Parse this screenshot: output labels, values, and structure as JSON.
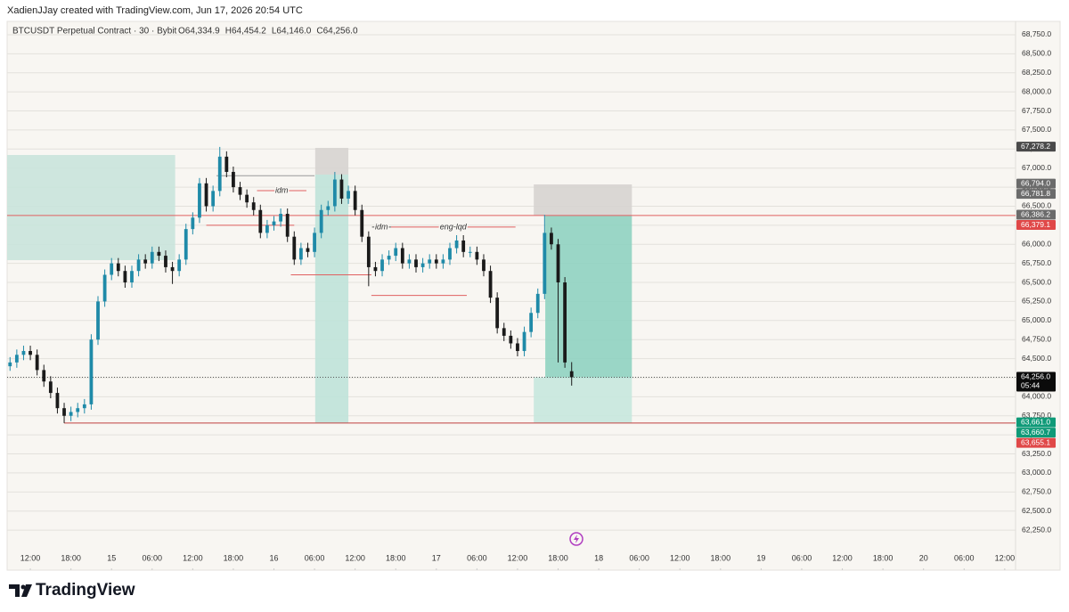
{
  "header": {
    "credit": "XadienJJay created with TradingView.com, Jun 17, 2026 20:54 UTC",
    "logo": "TradingView"
  },
  "chart_data": {
    "type": "candlestick",
    "symbol": "BTCUSDT Perpetual Contract · 30 · Bybit",
    "ohlc_labels": [
      "O64,334.9",
      "H64,454.2",
      "L64,146.0",
      "C64,256.0"
    ],
    "up_color": "#1f8aa8",
    "down_color": "#1a1a1a",
    "grid": true,
    "xlim": [
      -3.43,
      145.6
    ],
    "ylim": [
      61725,
      68925
    ],
    "xticks": [
      {
        "value": 0,
        "label": "12:00"
      },
      {
        "value": 6,
        "label": "18:00"
      },
      {
        "value": 12,
        "label": "15"
      },
      {
        "value": 18,
        "label": "06:00"
      },
      {
        "value": 24,
        "label": "12:00"
      },
      {
        "value": 30,
        "label": "18:00"
      },
      {
        "value": 36,
        "label": "16"
      },
      {
        "value": 42,
        "label": "06:00"
      },
      {
        "value": 48,
        "label": "12:00"
      },
      {
        "value": 54,
        "label": "18:00"
      },
      {
        "value": 60,
        "label": "17"
      },
      {
        "value": 66,
        "label": "06:00"
      },
      {
        "value": 72,
        "label": "12:00"
      },
      {
        "value": 78,
        "label": "18:00"
      },
      {
        "value": 84,
        "label": "18"
      },
      {
        "value": 90,
        "label": "06:00"
      },
      {
        "value": 96,
        "label": "12:00"
      },
      {
        "value": 102,
        "label": "18:00"
      },
      {
        "value": 108,
        "label": "19"
      },
      {
        "value": 114,
        "label": "06:00"
      },
      {
        "value": 120,
        "label": "12:00"
      },
      {
        "value": 126,
        "label": "18:00"
      },
      {
        "value": 132,
        "label": "20"
      },
      {
        "value": 138,
        "label": "06:00"
      },
      {
        "value": 144,
        "label": "12:00"
      }
    ],
    "yticks": [
      {
        "value": 62250,
        "label": "62,250.0"
      },
      {
        "value": 62500,
        "label": "62,500.0"
      },
      {
        "value": 62750,
        "label": "62,750.0"
      },
      {
        "value": 63000,
        "label": "63,000.0"
      },
      {
        "value": 63250,
        "label": "63,250.0"
      },
      {
        "value": 63500,
        "label": "63,500.0"
      },
      {
        "value": 63750,
        "label": "63,750.0"
      },
      {
        "value": 64000,
        "label": "64,000.0"
      },
      {
        "value": 64250,
        "label": "64,250.0"
      },
      {
        "value": 64500,
        "label": "64,500.0"
      },
      {
        "value": 64750,
        "label": "64,750.0"
      },
      {
        "value": 65000,
        "label": "65,000.0"
      },
      {
        "value": 65250,
        "label": "65,250.0"
      },
      {
        "value": 65500,
        "label": "65,500.0"
      },
      {
        "value": 65750,
        "label": "65,750.0"
      },
      {
        "value": 66000,
        "label": "66,000.0"
      },
      {
        "value": 66250,
        "label": "66,250.0"
      },
      {
        "value": 66500,
        "label": "66,500.0"
      },
      {
        "value": 66750,
        "label": "66,750.0"
      },
      {
        "value": 67000,
        "label": "67,000.0"
      },
      {
        "value": 67250,
        "label": "67,250.0"
      },
      {
        "value": 67500,
        "label": "67,500.0"
      },
      {
        "value": 67750,
        "label": "67,750.0"
      },
      {
        "value": 68000,
        "label": "68,000.0"
      },
      {
        "value": 68250,
        "label": "68,250.0"
      },
      {
        "value": 68500,
        "label": "68,500.0"
      },
      {
        "value": 68750,
        "label": "68,750.0"
      }
    ],
    "x": [
      -3,
      -2,
      -1,
      0,
      1,
      2,
      3,
      4,
      5,
      6,
      7,
      8,
      9,
      10,
      11,
      12,
      13,
      14,
      15,
      16,
      17,
      18,
      19,
      20,
      21,
      22,
      23,
      24,
      25,
      26,
      27,
      28,
      29,
      30,
      31,
      32,
      33,
      34,
      35,
      36,
      37,
      38,
      39,
      40,
      41,
      42,
      43,
      44,
      45,
      46,
      47,
      48,
      49,
      50,
      51,
      52,
      53,
      54,
      55,
      56,
      57,
      58,
      59,
      60,
      61,
      62,
      63,
      64,
      65,
      66,
      67,
      68,
      69,
      70,
      71,
      72,
      73,
      74,
      75,
      76,
      77,
      78,
      79,
      80
    ],
    "candles": [
      [
        64400,
        64520,
        64340,
        64450
      ],
      [
        64450,
        64620,
        64380,
        64550
      ],
      [
        64550,
        64670,
        64480,
        64600
      ],
      [
        64600,
        64670,
        64480,
        64550
      ],
      [
        64550,
        64620,
        64280,
        64350
      ],
      [
        64350,
        64420,
        64130,
        64200
      ],
      [
        64200,
        64270,
        63980,
        64050
      ],
      [
        64050,
        64120,
        63780,
        63850
      ],
      [
        63850,
        63920,
        63655,
        63750
      ],
      [
        63750,
        63870,
        63680,
        63800
      ],
      [
        63800,
        63920,
        63730,
        63850
      ],
      [
        63850,
        63970,
        63780,
        63900
      ],
      [
        63900,
        64820,
        63830,
        64750
      ],
      [
        64750,
        65320,
        64680,
        65250
      ],
      [
        65250,
        65670,
        65180,
        65600
      ],
      [
        65600,
        65820,
        65530,
        65750
      ],
      [
        65750,
        65820,
        65580,
        65650
      ],
      [
        65650,
        65720,
        65430,
        65500
      ],
      [
        65500,
        65720,
        65430,
        65650
      ],
      [
        65650,
        65870,
        65580,
        65800
      ],
      [
        65800,
        65870,
        65680,
        65750
      ],
      [
        65750,
        65970,
        65680,
        65900
      ],
      [
        65900,
        65970,
        65780,
        65850
      ],
      [
        65850,
        65920,
        65630,
        65700
      ],
      [
        65700,
        65770,
        65480,
        65650
      ],
      [
        65650,
        65870,
        65580,
        65800
      ],
      [
        65800,
        66270,
        65730,
        66200
      ],
      [
        66200,
        66420,
        66130,
        66350
      ],
      [
        66350,
        66870,
        66280,
        66800
      ],
      [
        66800,
        66870,
        66430,
        66500
      ],
      [
        66500,
        66770,
        66430,
        66700
      ],
      [
        66700,
        67278,
        66630,
        67150
      ],
      [
        67150,
        67220,
        66880,
        66950
      ],
      [
        66950,
        67020,
        66680,
        66750
      ],
      [
        66750,
        66820,
        66580,
        66650
      ],
      [
        66650,
        66720,
        66480,
        66550
      ],
      [
        66550,
        66620,
        66380,
        66450
      ],
      [
        66450,
        66520,
        66080,
        66150
      ],
      [
        66150,
        66320,
        66080,
        66250
      ],
      [
        66250,
        66370,
        66180,
        66300
      ],
      [
        66300,
        66470,
        66230,
        66400
      ],
      [
        66400,
        66470,
        66030,
        66100
      ],
      [
        66100,
        66170,
        65730,
        65800
      ],
      [
        65800,
        66020,
        65730,
        65950
      ],
      [
        65950,
        66020,
        65830,
        65900
      ],
      [
        65900,
        66220,
        65830,
        66150
      ],
      [
        66150,
        66520,
        66080,
        66450
      ],
      [
        66450,
        66570,
        66380,
        66500
      ],
      [
        66500,
        66950,
        66430,
        66850
      ],
      [
        66850,
        66920,
        66530,
        66600
      ],
      [
        66600,
        66770,
        66530,
        66700
      ],
      [
        66700,
        66770,
        66380,
        66450
      ],
      [
        66450,
        66520,
        66030,
        66100
      ],
      [
        66100,
        66170,
        65450,
        65700
      ],
      [
        65700,
        65770,
        65580,
        65650
      ],
      [
        65650,
        65870,
        65580,
        65800
      ],
      [
        65800,
        65920,
        65730,
        65850
      ],
      [
        65850,
        66020,
        65780,
        65950
      ],
      [
        65950,
        66020,
        65680,
        65750
      ],
      [
        65750,
        65870,
        65680,
        65800
      ],
      [
        65800,
        65870,
        65630,
        65700
      ],
      [
        65700,
        65820,
        65630,
        65750
      ],
      [
        65750,
        65870,
        65680,
        65800
      ],
      [
        65800,
        65870,
        65680,
        65750
      ],
      [
        65750,
        65870,
        65680,
        65800
      ],
      [
        65800,
        66020,
        65730,
        65950
      ],
      [
        65950,
        66120,
        65880,
        66050
      ],
      [
        66050,
        66120,
        65830,
        65900
      ],
      [
        65900,
        65970,
        65830,
        65900
      ],
      [
        65900,
        65970,
        65730,
        65800
      ],
      [
        65800,
        65870,
        65580,
        65650
      ],
      [
        65650,
        65720,
        65230,
        65300
      ],
      [
        65300,
        65370,
        64830,
        64900
      ],
      [
        64900,
        64970,
        64730,
        64800
      ],
      [
        64800,
        64870,
        64630,
        64700
      ],
      [
        64700,
        64770,
        64530,
        64600
      ],
      [
        64600,
        64920,
        64530,
        64850
      ],
      [
        64850,
        65170,
        64780,
        65100
      ],
      [
        65100,
        65420,
        65030,
        65350
      ],
      [
        65350,
        66386,
        65280,
        66150
      ],
      [
        66150,
        66220,
        65930,
        66000
      ],
      [
        66000,
        66070,
        64450,
        65500
      ],
      [
        65500,
        65570,
        64380,
        64450
      ],
      [
        64334.9,
        64454.2,
        64146,
        64256
      ]
    ],
    "zones": [
      {
        "x1": -3.43,
        "x2": 21.4,
        "y1": 65792,
        "y2": 67172,
        "color": "#c9e4dc"
      },
      {
        "x1": 42.1,
        "x2": 47,
        "y1": 66915,
        "y2": 67265,
        "color": "#d6d4d0"
      },
      {
        "x1": 42.1,
        "x2": 47,
        "y1": 63655,
        "y2": 66915,
        "color": "#bfe3d9"
      },
      {
        "x1": 74.4,
        "x2": 88.9,
        "y1": 66380,
        "y2": 66786,
        "color": "#d6d4d0"
      },
      {
        "x1": 76.1,
        "x2": 88.9,
        "y1": 64238,
        "y2": 66380,
        "color": "#8fd3c1"
      },
      {
        "x1": 74.4,
        "x2": 88.9,
        "y1": 63660,
        "y2": 64256,
        "color": "#c6e8de"
      }
    ],
    "lines": [
      {
        "price": 66379.1,
        "x1": -3.43,
        "x2": 145.6,
        "color": "#e06060"
      },
      {
        "price": 63655.1,
        "x1": 5,
        "x2": 145.6,
        "color": "#c04040"
      },
      {
        "price": 66704,
        "x1": 33.5,
        "x2": 40.8,
        "color": "#e06060",
        "label": "idm"
      },
      {
        "price": 66250,
        "x1": 26,
        "x2": 39,
        "color": "#e06060"
      },
      {
        "price": 65600,
        "x1": 38.5,
        "x2": 50.4,
        "color": "#e06060"
      },
      {
        "price": 65330,
        "x1": 50.4,
        "x2": 64.5,
        "color": "#e06060"
      },
      {
        "price": 66226,
        "x1": 53.3,
        "x2": 71.7,
        "color": "#e06060",
        "label": "eng-lqd"
      },
      {
        "price": 66226,
        "x1": 50.5,
        "x2": 53.3,
        "color": "#555555",
        "label": "idm"
      },
      {
        "price": 66900,
        "x1": 27.5,
        "x2": 42,
        "color": "#999999"
      }
    ],
    "last_price": {
      "value": 64256,
      "label": "64,256.0",
      "countdown": "05:44"
    },
    "badges": [
      {
        "value": 67278.2,
        "label": "67,278.2",
        "color": "#4a4a4a"
      },
      {
        "value": 66794,
        "label": "66,794.0",
        "color": "#6b6b6b"
      },
      {
        "value": 66781.8,
        "label": "66,781.8",
        "color": "#6b6b6b"
      },
      {
        "value": 66386.2,
        "label": "66,386.2",
        "color": "#6b6b6b"
      },
      {
        "value": 66379.1,
        "label": "66,379.1",
        "color": "#e04848"
      },
      {
        "value": 63661,
        "label": "63,661.0",
        "color": "#0f9a78"
      },
      {
        "value": 63660.7,
        "label": "63,660.7",
        "color": "#0f9a78"
      },
      {
        "value": 63655.1,
        "label": "63,655.1",
        "color": "#e04848"
      }
    ]
  }
}
